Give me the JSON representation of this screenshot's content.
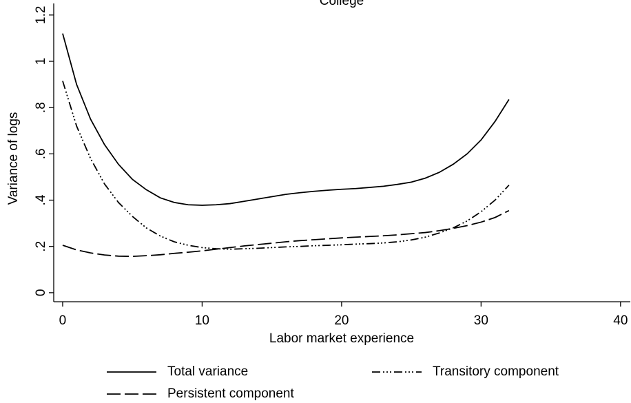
{
  "chart_data": {
    "type": "line",
    "title": "College",
    "x_label": "Labor market experience",
    "y_label": "Variance of logs",
    "x": [
      0,
      1,
      2,
      3,
      4,
      5,
      6,
      7,
      8,
      9,
      10,
      11,
      12,
      13,
      14,
      15,
      16,
      17,
      18,
      19,
      20,
      21,
      22,
      23,
      24,
      25,
      26,
      27,
      28,
      29,
      30,
      31,
      32
    ],
    "series": [
      {
        "name": "Total variance",
        "color": "#000000",
        "dash": null,
        "values": [
          1.12,
          0.9,
          0.75,
          0.64,
          0.555,
          0.49,
          0.445,
          0.41,
          0.39,
          0.38,
          0.378,
          0.38,
          0.385,
          0.395,
          0.405,
          0.415,
          0.425,
          0.432,
          0.438,
          0.443,
          0.447,
          0.45,
          0.455,
          0.46,
          0.468,
          0.478,
          0.495,
          0.52,
          0.555,
          0.6,
          0.66,
          0.74,
          0.835
        ]
      },
      {
        "name": "Transitory component",
        "color": "#000000",
        "dash": [
          12,
          4,
          2,
          3,
          2,
          3,
          2,
          4
        ],
        "values": [
          0.915,
          0.72,
          0.58,
          0.47,
          0.39,
          0.33,
          0.28,
          0.245,
          0.22,
          0.205,
          0.195,
          0.19,
          0.188,
          0.19,
          0.192,
          0.195,
          0.198,
          0.2,
          0.203,
          0.205,
          0.207,
          0.21,
          0.212,
          0.215,
          0.22,
          0.228,
          0.24,
          0.258,
          0.28,
          0.31,
          0.35,
          0.4,
          0.465
        ]
      },
      {
        "name": "Persistent component",
        "color": "#000000",
        "dash": [
          20,
          6
        ],
        "values": [
          0.205,
          0.185,
          0.172,
          0.163,
          0.158,
          0.157,
          0.16,
          0.164,
          0.17,
          0.175,
          0.181,
          0.188,
          0.195,
          0.202,
          0.208,
          0.214,
          0.22,
          0.225,
          0.229,
          0.233,
          0.237,
          0.24,
          0.243,
          0.246,
          0.25,
          0.255,
          0.26,
          0.268,
          0.278,
          0.29,
          0.305,
          0.325,
          0.355
        ]
      }
    ],
    "xlim": [
      -0.64,
      40.7
    ],
    "xticks": [
      0,
      10,
      20,
      30,
      40
    ],
    "ylim": [
      -0.039,
      1.25
    ],
    "yticks": [
      0,
      {
        "value": 0.2,
        "label": ".2"
      },
      {
        "value": 0.4,
        "label": ".4"
      },
      {
        "value": 0.6,
        "label": ".6"
      },
      {
        "value": 0.8,
        "label": ".8"
      },
      1,
      1.2
    ],
    "grid": false,
    "legend": "bottom"
  }
}
